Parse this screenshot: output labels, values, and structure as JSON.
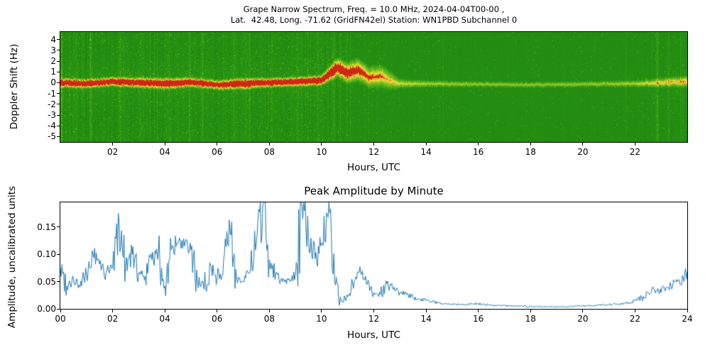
{
  "figure": {
    "background": "#ffffff"
  },
  "chart_data": [
    {
      "type": "heatmap",
      "title": "Grape Narrow Spectrum, Freq. = 10.0 MHz, 2024-04-04T00-00 ,",
      "subtitle": "Lat.  42.48, Long. -71.62 (GridFN42el) Station: WN1PBD Subchannel 0",
      "xlabel": "Hours, UTC",
      "ylabel": "Doppler Shift (Hz)",
      "xlim": [
        0,
        24
      ],
      "ylim": [
        -5.5,
        4.7
      ],
      "xtick_values": [
        2,
        4,
        6,
        8,
        10,
        12,
        14,
        16,
        18,
        20,
        22
      ],
      "xtick_labels": [
        "02",
        "04",
        "06",
        "08",
        "10",
        "12",
        "14",
        "16",
        "18",
        "20",
        "22"
      ],
      "ytick_values": [
        4,
        3,
        2,
        1,
        0,
        -1,
        -2,
        -3,
        -4,
        -5
      ],
      "ytick_labels": [
        "4",
        "3",
        "2",
        "1",
        "0",
        "-1",
        "-2",
        "-3",
        "-4",
        "-5"
      ],
      "colormap": {
        "low": "#0b6b0b",
        "mid": "#2f9c14",
        "high": "#7fc01e",
        "peak": "#e8e23c",
        "hot": "#f09a28",
        "max": "#cc2814"
      },
      "carrier_keypoints": {
        "t": [
          0,
          1,
          2,
          3,
          4,
          5,
          6,
          7,
          8,
          9,
          10,
          10.3,
          10.6,
          11,
          11.4,
          11.8,
          12.3,
          12.7,
          13,
          14,
          16,
          18,
          20,
          22,
          23,
          24
        ],
        "center_hz": [
          0,
          -0.1,
          0.1,
          0,
          -0.1,
          0.05,
          -0.2,
          -0.1,
          0,
          0.1,
          0.2,
          0.8,
          1.4,
          0.9,
          1.2,
          0.5,
          0.6,
          0.1,
          -0.1,
          -0.1,
          -0.15,
          -0.2,
          -0.15,
          -0.1,
          0,
          0.1
        ],
        "halfwidth_hz": [
          0.5,
          0.5,
          0.5,
          0.55,
          0.6,
          0.5,
          0.5,
          0.6,
          0.5,
          0.5,
          0.55,
          0.8,
          1.0,
          1.1,
          1.2,
          1.1,
          1.2,
          0.9,
          0.5,
          0.35,
          0.3,
          0.3,
          0.3,
          0.35,
          0.5,
          0.6
        ],
        "intensity": [
          1,
          1,
          1,
          1,
          1,
          1,
          1,
          1,
          1,
          1,
          1,
          0.95,
          0.9,
          0.85,
          0.8,
          0.7,
          0.65,
          0.55,
          0.5,
          0.45,
          0.42,
          0.42,
          0.42,
          0.45,
          0.55,
          0.6
        ]
      },
      "activity_keypoints": {
        "t": [
          0,
          10.4,
          11.2,
          13,
          15,
          21,
          24
        ],
        "level": [
          1,
          1,
          0.55,
          0.3,
          0.22,
          0.22,
          0.55
        ]
      },
      "streaks": {
        "t": [
          0.05,
          0.35,
          1.15,
          2.3,
          3.05,
          4.2,
          4.95,
          5.45,
          6.65,
          7.25,
          8.1,
          9.05,
          9.85,
          10.45,
          22.85,
          23.3
        ],
        "strength": [
          0.5,
          0.3,
          0.3,
          0.35,
          0.3,
          0.3,
          0.35,
          0.3,
          0.3,
          0.35,
          0.3,
          0.3,
          0.35,
          0.45,
          0.5,
          0.3
        ],
        "width_h": 0.07
      }
    },
    {
      "type": "line",
      "title": "Peak Amplitude by Minute",
      "xlabel": "Hours, UTC",
      "ylabel": "Amplitude, uncalibrated units",
      "xlim": [
        0,
        24
      ],
      "ylim": [
        0,
        0.195
      ],
      "xtick_values": [
        0,
        2,
        4,
        6,
        8,
        10,
        12,
        14,
        16,
        18,
        20,
        22,
        24
      ],
      "xtick_labels": [
        "00",
        "02",
        "04",
        "06",
        "08",
        "10",
        "12",
        "14",
        "16",
        "18",
        "20",
        "22",
        "24"
      ],
      "ytick_values": [
        0,
        0.05,
        0.1,
        0.15
      ],
      "ytick_labels": [
        "0.00",
        "0.05",
        "0.10",
        "0.15"
      ],
      "line_color": "#1f77b4",
      "x": [
        0,
        0.25,
        0.5,
        0.75,
        1,
        1.25,
        1.5,
        1.75,
        2,
        2.25,
        2.5,
        2.75,
        3,
        3.25,
        3.5,
        3.75,
        4,
        4.25,
        4.5,
        4.75,
        5,
        5.25,
        5.5,
        5.75,
        6,
        6.25,
        6.5,
        6.75,
        7,
        7.25,
        7.5,
        7.75,
        8,
        8.25,
        8.5,
        8.75,
        9,
        9.25,
        9.5,
        9.75,
        10,
        10.25,
        10.5,
        10.75,
        11,
        11.25,
        11.5,
        11.75,
        12,
        12.25,
        12.5,
        12.75,
        13,
        13.25,
        13.5,
        13.75,
        14,
        14.25,
        14.5,
        14.75,
        15,
        15.25,
        15.5,
        15.75,
        16,
        16.25,
        16.5,
        16.75,
        17,
        17.25,
        17.5,
        17.75,
        18,
        18.25,
        18.5,
        18.75,
        19,
        19.25,
        19.5,
        19.75,
        20,
        20.25,
        20.5,
        20.75,
        21,
        21.25,
        21.5,
        21.75,
        22,
        22.25,
        22.5,
        22.75,
        23,
        23.25,
        23.5,
        23.75,
        24
      ],
      "y": [
        0.075,
        0.042,
        0.056,
        0.04,
        0.062,
        0.1,
        0.082,
        0.066,
        0.075,
        0.158,
        0.082,
        0.1,
        0.066,
        0.06,
        0.09,
        0.102,
        0.042,
        0.108,
        0.12,
        0.115,
        0.108,
        0.05,
        0.036,
        0.08,
        0.056,
        0.09,
        0.14,
        0.056,
        0.05,
        0.066,
        0.12,
        0.19,
        0.09,
        0.066,
        0.05,
        0.056,
        0.062,
        0.19,
        0.13,
        0.092,
        0.12,
        0.168,
        0.05,
        0.015,
        0.022,
        0.05,
        0.065,
        0.045,
        0.03,
        0.026,
        0.046,
        0.036,
        0.03,
        0.026,
        0.021,
        0.018,
        0.015,
        0.013,
        0.011,
        0.01,
        0.009,
        0.008,
        0.008,
        0.009,
        0.01,
        0.008,
        0.007,
        0.006,
        0.006,
        0.005,
        0.005,
        0.005,
        0.004,
        0.004,
        0.004,
        0.004,
        0.004,
        0.004,
        0.004,
        0.005,
        0.005,
        0.006,
        0.006,
        0.007,
        0.008,
        0.009,
        0.01,
        0.012,
        0.015,
        0.02,
        0.03,
        0.035,
        0.03,
        0.04,
        0.05,
        0.045,
        0.068
      ]
    }
  ]
}
